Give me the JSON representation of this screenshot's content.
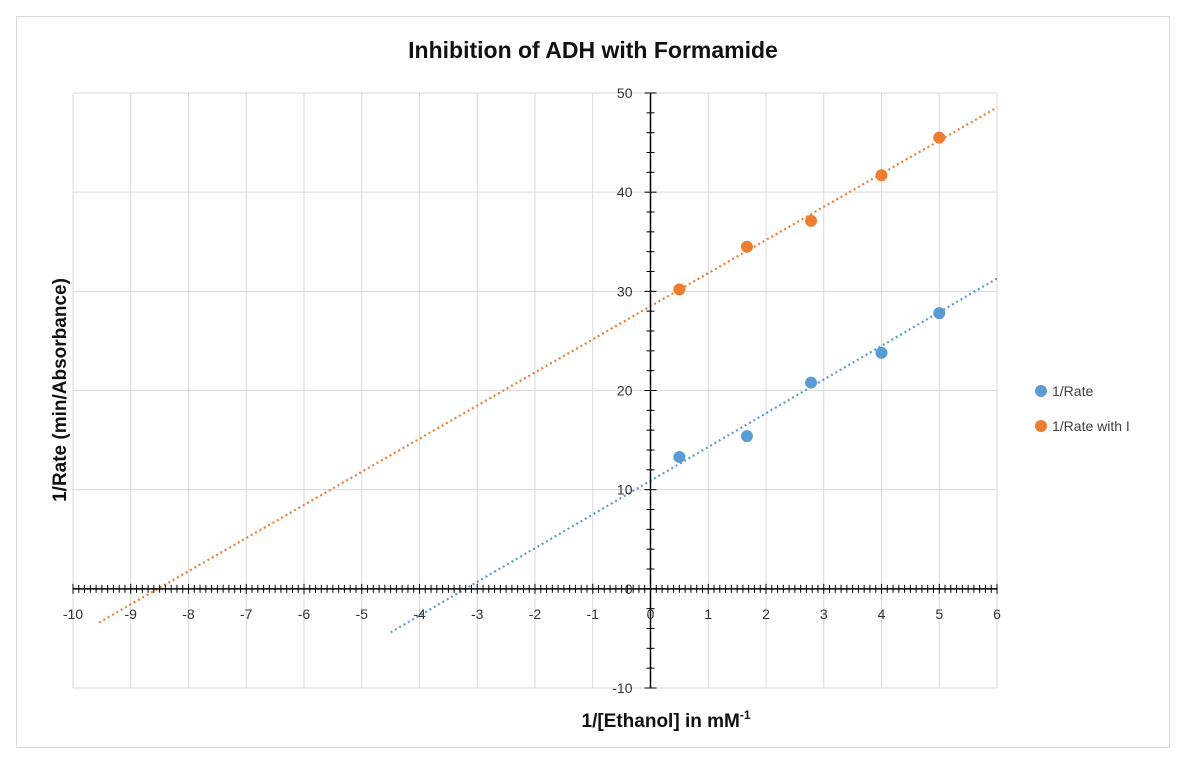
{
  "chart_data": {
    "type": "scatter",
    "title": "Inhibition of ADH with Formamide",
    "xlabel": "1/[Ethanol] in mM",
    "xlabel_superscript": "-1",
    "ylabel": "1/Rate (min/Absorbance)",
    "xlim": [
      -10,
      6
    ],
    "ylim": [
      -10,
      50
    ],
    "x_ticks": [
      "-10",
      "-9",
      "-8",
      "-7",
      "-6",
      "-5",
      "-4",
      "-3",
      "-2",
      "-1",
      "0",
      "1",
      "2",
      "3",
      "4",
      "5",
      "6"
    ],
    "y_ticks": [
      "-10",
      "0",
      "10",
      "20",
      "30",
      "40",
      "50"
    ],
    "grid": true,
    "legend_position": "right",
    "series": [
      {
        "name": "1/Rate",
        "color": "#5b9bd5",
        "x": [
          0.5,
          1.67,
          2.78,
          4.0,
          5.0
        ],
        "y": [
          13.3,
          15.4,
          20.8,
          23.8,
          27.8
        ],
        "trendline": {
          "style": "dotted",
          "slope": 3.4,
          "intercept": 10.9,
          "x_range": [
            -4.5,
            6
          ]
        }
      },
      {
        "name": "1/Rate with I",
        "color": "#ed7d31",
        "x": [
          0.5,
          1.67,
          2.78,
          4.0,
          5.0
        ],
        "y": [
          30.2,
          34.5,
          37.1,
          41.7,
          45.5
        ],
        "trendline": {
          "style": "dotted",
          "slope": 3.34,
          "intercept": 28.5,
          "x_range": [
            -9.55,
            6
          ]
        }
      }
    ]
  }
}
